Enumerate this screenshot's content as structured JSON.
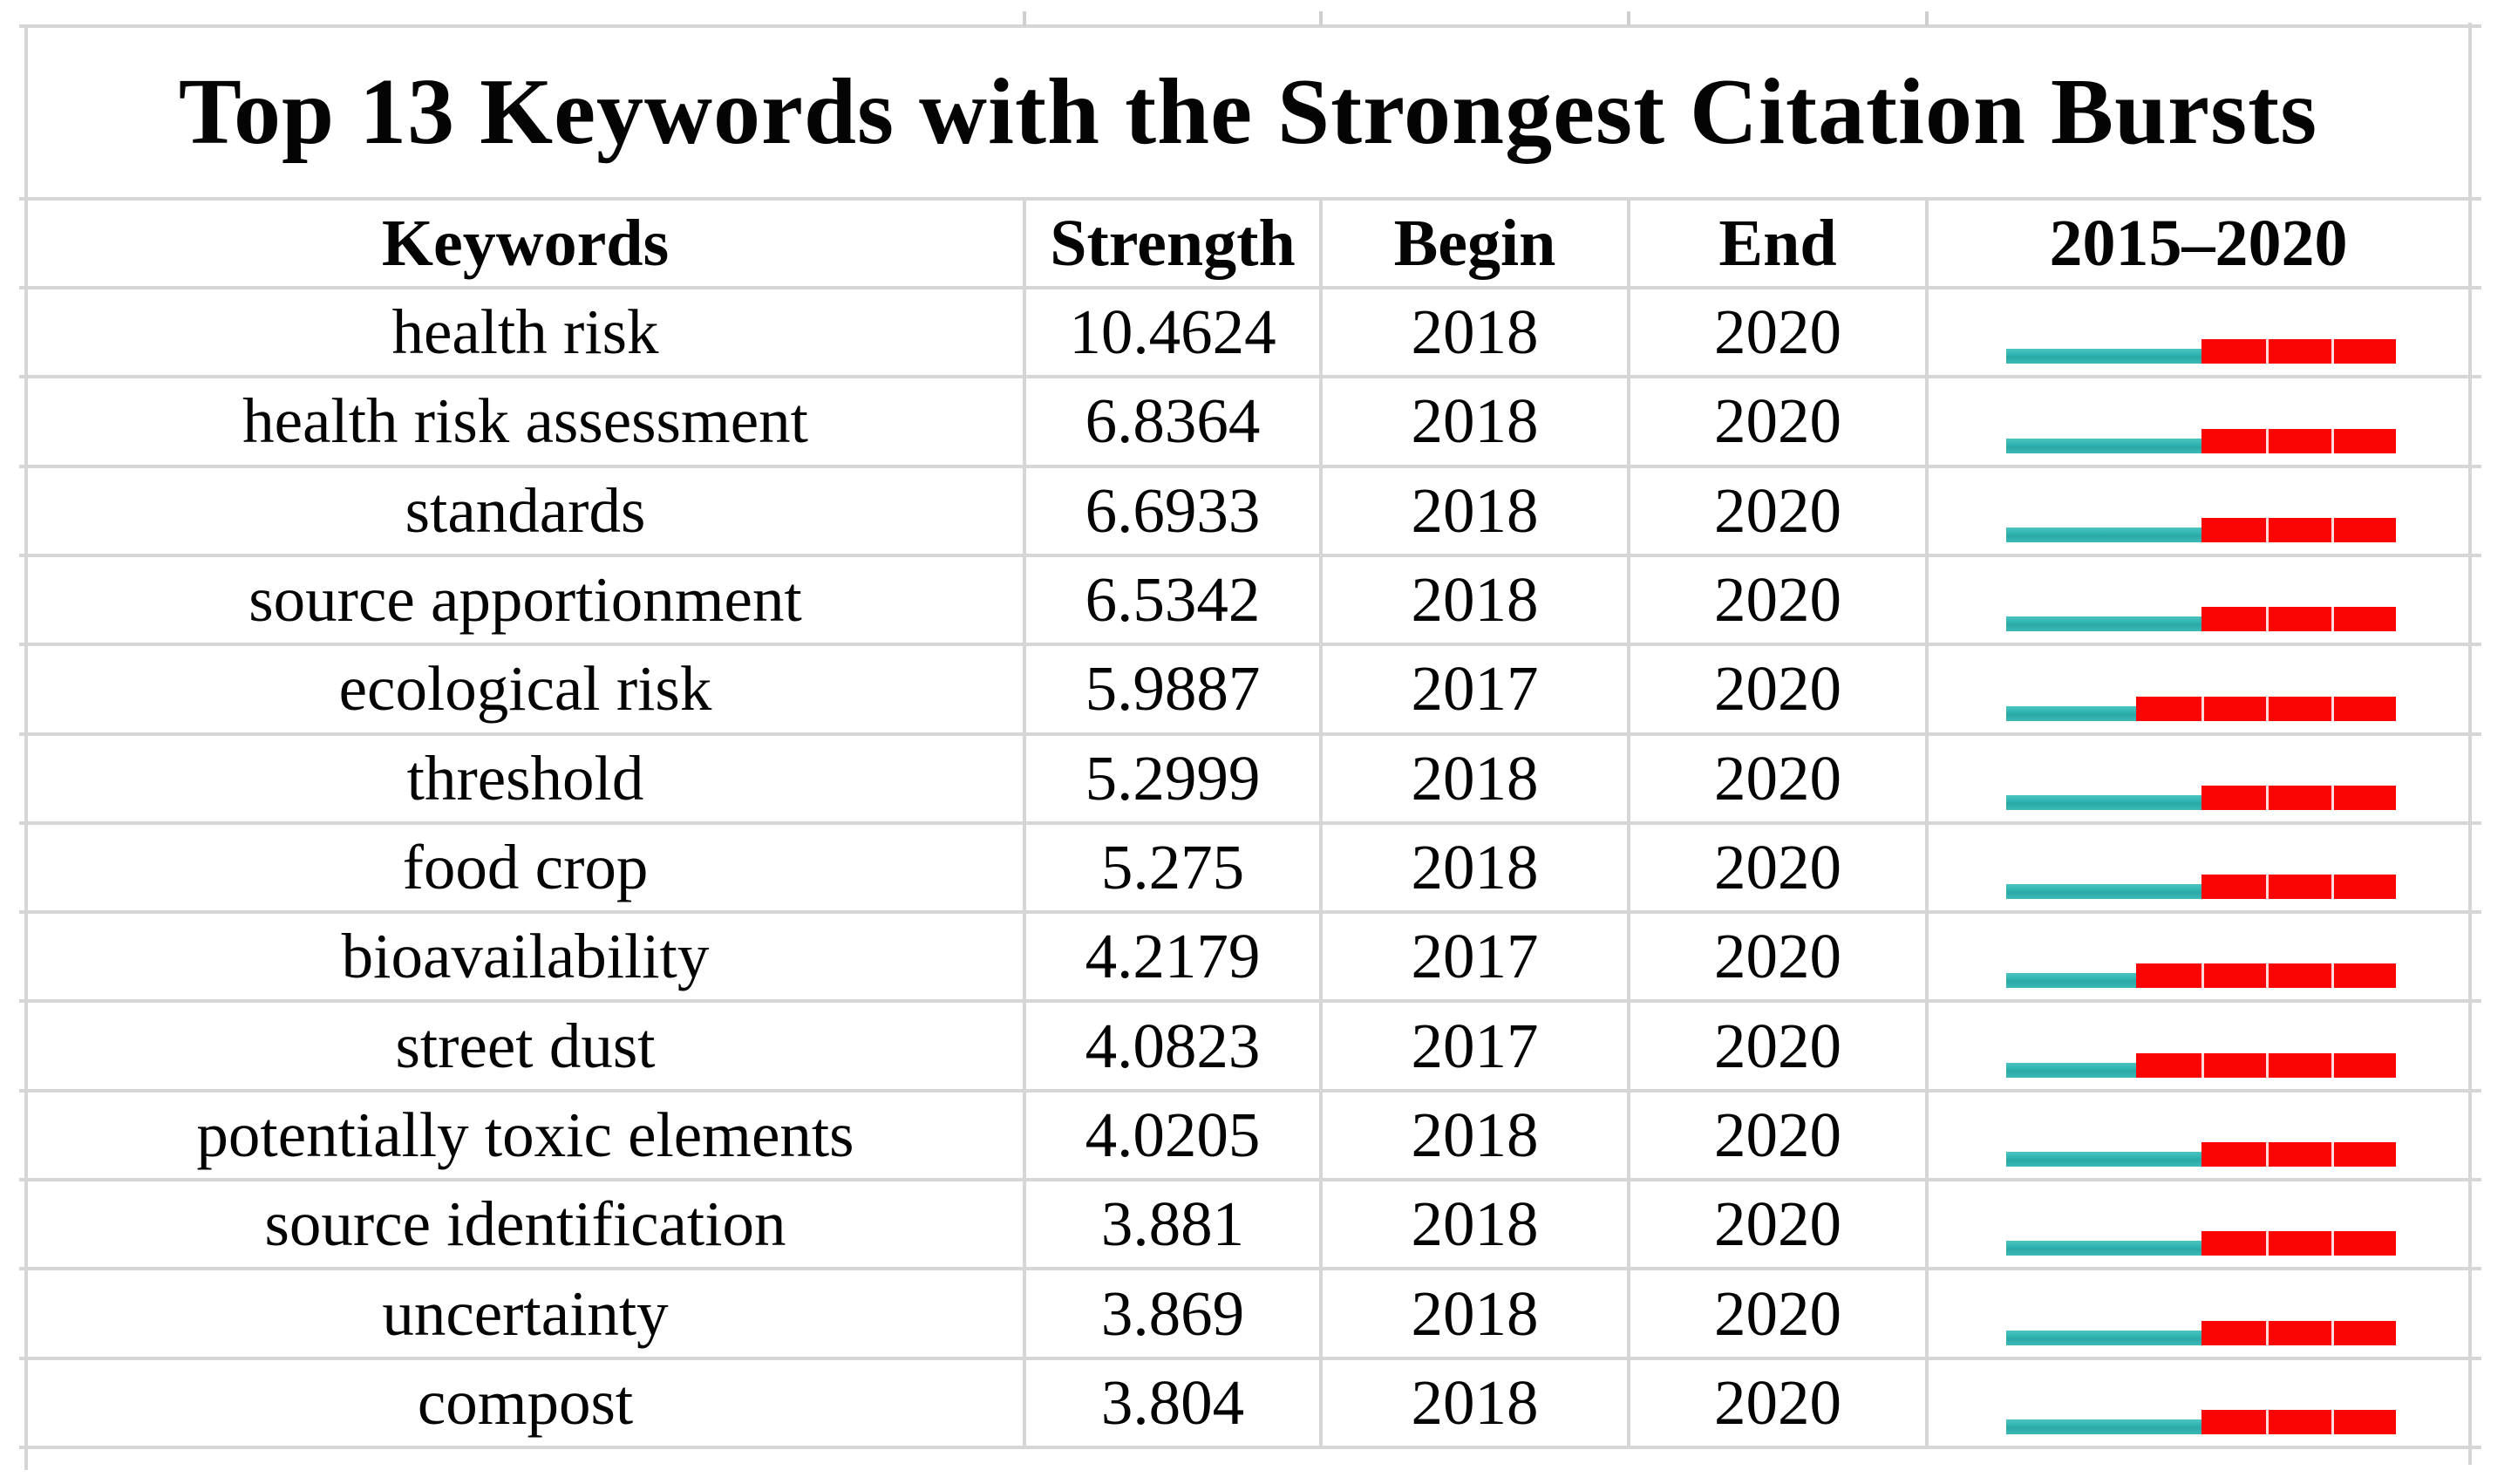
{
  "title": "Top 13 Keywords with the Strongest Citation Bursts",
  "columns": [
    "Keywords",
    "Strength",
    "Begin",
    "End",
    "2015–2020"
  ],
  "period": {
    "start": 2015,
    "end": 2020
  },
  "colors": {
    "pre_burst_teal": "#35b8b5",
    "burst_red": "#fb0404",
    "gridline": "#d6d6d6"
  },
  "rows": [
    {
      "keyword": "health risk",
      "strength": "10.4624",
      "begin": "2018",
      "end": "2020"
    },
    {
      "keyword": "health risk assessment",
      "strength": "6.8364",
      "begin": "2018",
      "end": "2020"
    },
    {
      "keyword": "standards",
      "strength": "6.6933",
      "begin": "2018",
      "end": "2020"
    },
    {
      "keyword": "source apportionment",
      "strength": "6.5342",
      "begin": "2018",
      "end": "2020"
    },
    {
      "keyword": "ecological risk",
      "strength": "5.9887",
      "begin": "2017",
      "end": "2020"
    },
    {
      "keyword": "threshold",
      "strength": "5.2999",
      "begin": "2018",
      "end": "2020"
    },
    {
      "keyword": "food crop",
      "strength": "5.275",
      "begin": "2018",
      "end": "2020"
    },
    {
      "keyword": "bioavailability",
      "strength": "4.2179",
      "begin": "2017",
      "end": "2020"
    },
    {
      "keyword": "street dust",
      "strength": "4.0823",
      "begin": "2017",
      "end": "2020"
    },
    {
      "keyword": "potentially toxic elements",
      "strength": "4.0205",
      "begin": "2018",
      "end": "2020"
    },
    {
      "keyword": "source identification",
      "strength": "3.881",
      "begin": "2018",
      "end": "2020"
    },
    {
      "keyword": "uncertainty",
      "strength": "3.869",
      "begin": "2018",
      "end": "2020"
    },
    {
      "keyword": "compost",
      "strength": "3.804",
      "begin": "2018",
      "end": "2020"
    }
  ],
  "chart_data": {
    "type": "table",
    "title": "Top 13 Keywords with the Strongest Citation Bursts",
    "columns": [
      "Keywords",
      "Strength",
      "Begin",
      "End",
      "2015–2020"
    ],
    "x_range": [
      2015,
      2020
    ],
    "legend": {
      "teal_segment": "years before citation burst",
      "red_segment": "citation burst years (Begin through End)"
    },
    "rows": [
      {
        "keyword": "health risk",
        "strength": 10.4624,
        "begin": 2018,
        "end": 2020
      },
      {
        "keyword": "health risk assessment",
        "strength": 6.8364,
        "begin": 2018,
        "end": 2020
      },
      {
        "keyword": "standards",
        "strength": 6.6933,
        "begin": 2018,
        "end": 2020
      },
      {
        "keyword": "source apportionment",
        "strength": 6.5342,
        "begin": 2018,
        "end": 2020
      },
      {
        "keyword": "ecological risk",
        "strength": 5.9887,
        "begin": 2017,
        "end": 2020
      },
      {
        "keyword": "threshold",
        "strength": 5.2999,
        "begin": 2018,
        "end": 2020
      },
      {
        "keyword": "food crop",
        "strength": 5.275,
        "begin": 2018,
        "end": 2020
      },
      {
        "keyword": "bioavailability",
        "strength": 4.2179,
        "begin": 2017,
        "end": 2020
      },
      {
        "keyword": "street dust",
        "strength": 4.0823,
        "begin": 2017,
        "end": 2020
      },
      {
        "keyword": "potentially toxic elements",
        "strength": 4.0205,
        "begin": 2018,
        "end": 2020
      },
      {
        "keyword": "source identification",
        "strength": 3.881,
        "begin": 2018,
        "end": 2020
      },
      {
        "keyword": "uncertainty",
        "strength": 3.869,
        "begin": 2018,
        "end": 2020
      },
      {
        "keyword": "compost",
        "strength": 3.804,
        "begin": 2018,
        "end": 2020
      }
    ]
  }
}
